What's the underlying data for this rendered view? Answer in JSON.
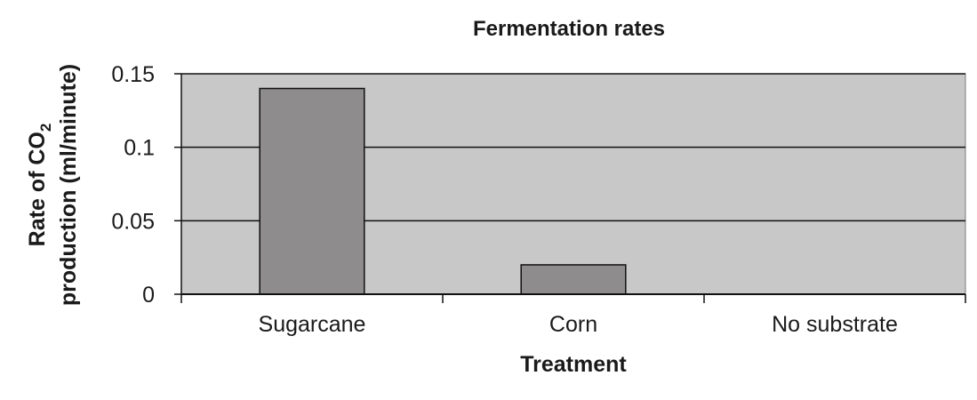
{
  "chart_data": {
    "type": "bar",
    "title": "Fermentation rates",
    "xlabel": "Treatment",
    "ylabel_line1": "Rate of CO",
    "ylabel_subscript": "2",
    "ylabel_line2": "production (ml/minute)",
    "categories": [
      "Sugarcane",
      "Corn",
      "No substrate"
    ],
    "values": [
      0.14,
      0.02,
      0
    ],
    "ylim": [
      0,
      0.15
    ],
    "yticks": [
      {
        "value": 0,
        "label": "0"
      },
      {
        "value": 0.05,
        "label": "0.05"
      },
      {
        "value": 0.1,
        "label": "0.1"
      },
      {
        "value": 0.15,
        "label": "0.15"
      }
    ],
    "grid": true,
    "legend": "none",
    "colors": {
      "plot_background": "#c8c8c8",
      "bar_fill": "#8e8c8d",
      "bar_stroke": "#111111",
      "gridline": "#111111"
    }
  }
}
